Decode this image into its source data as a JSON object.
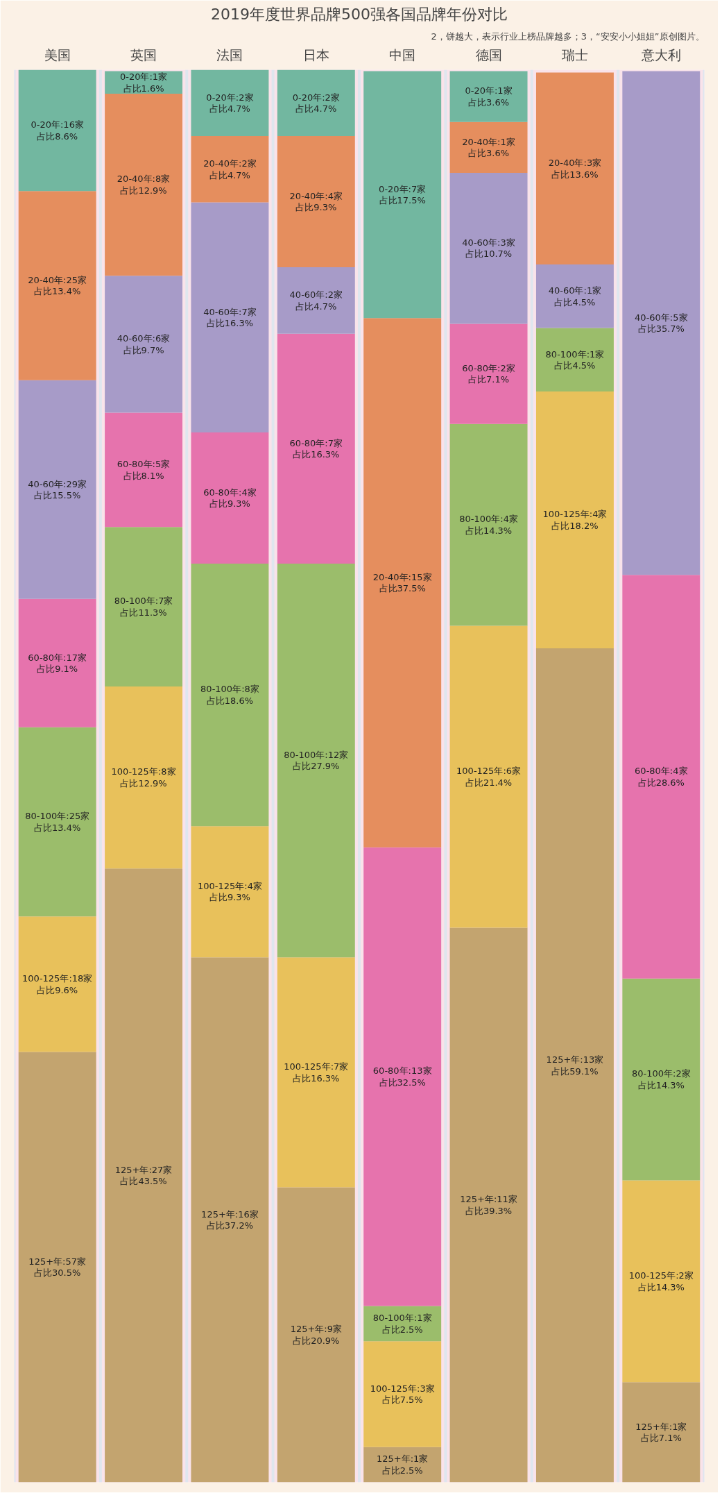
{
  "chart_data": {
    "type": "bar",
    "stacked": true,
    "title": "2019年度世界品牌500强各国品牌年份对比",
    "subtitle": "2，饼越大，表示行业上榜品牌越多；3，“安安小小姐姐”原创图片。",
    "categories": [
      "美国",
      "英国",
      "法国",
      "日本",
      "中国",
      "德国",
      "瑞士",
      "意大利"
    ],
    "ylim": [
      0,
      100.1
    ],
    "series": [
      {
        "color": "#c3a46f",
        "values": [
          30.5,
          43.5,
          37.2,
          20.9,
          2.5,
          39.3,
          59.1,
          7.1
        ],
        "value_labels": [
          "125+年:57家占比30.5%",
          "125+年:27家占比43.5%",
          "125+年:16家占比37.2%",
          "125+年:9家占比20.9%",
          "125+年:1家占比2.5%",
          "125+年:11家占比39.3%",
          "125+年:13家占比59.1%",
          "125+年:1家占比7.1%"
        ]
      },
      {
        "color": "#e8c15b",
        "values": [
          9.6,
          12.9,
          9.3,
          16.3,
          7.5,
          21.4,
          18.2,
          14.3
        ],
        "value_labels": [
          "100-125年:18家占比9.6%",
          "100-125年:8家占比12.9%",
          "100-125年:4家占比9.3%",
          "100-125年:7家占比16.3%",
          "100-125年:3家占比7.5%",
          "100-125年:6家占比21.4%",
          "100-125年:4家占比18.2%",
          "100-125年:2家占比14.3%"
        ]
      },
      {
        "color": "#9bbd6b",
        "values": [
          13.4,
          11.3,
          18.6,
          27.9,
          2.5,
          14.3,
          4.5,
          14.3
        ],
        "value_labels": [
          "80-100年:25家占比13.4%",
          "80-100年:7家占比11.3%",
          "80-100年:8家占比18.6%",
          "80-100年:12家占比27.9%",
          "80-100年:1家占比2.5%",
          "80-100年:4家占比14.3%",
          "80-100年:1家占比4.5%",
          "80-100年:2家占比14.3%"
        ]
      },
      {
        "color": "#e673ad",
        "values": [
          9.1,
          8.1,
          9.3,
          16.3,
          32.5,
          7.1,
          null,
          28.6
        ],
        "value_labels": [
          "60-80年:17家占比9.1%",
          "60-80年:5家占比8.1%",
          "60-80年:4家占比9.3%",
          "60-80年:7家占比16.3%",
          "60-80年:13家占比32.5%",
          "60-80年:2家占比7.1%",
          null,
          "60-80年:4家占比28.6%"
        ]
      },
      {
        "color": "#a79bc8",
        "values": [
          15.5,
          9.7,
          16.3,
          4.7,
          null,
          10.7,
          4.5,
          35.7
        ],
        "value_labels": [
          "40-60年:29家占比15.5%",
          "40-60年:6家占比9.7%",
          "40-60年:7家占比16.3%",
          "40-60年:2家占比4.7%",
          null,
          "40-60年:3家占比10.7%",
          "40-60年:1家占比4.5%",
          "40-60年:5家占比35.7%"
        ]
      },
      {
        "color": "#e58e5e",
        "values": [
          13.4,
          12.9,
          4.7,
          9.3,
          37.5,
          3.6,
          13.6,
          null
        ],
        "value_labels": [
          "20-40年:25家占比13.4%",
          "20-40年:8家占比12.9%",
          "20-40年:2家占比4.7%",
          "20-40年:4家占比9.3%",
          "20-40年:15家占比37.5%",
          "20-40年:1家占比3.6%",
          "20-40年:3家占比13.6%",
          null
        ]
      },
      {
        "color": "#72b7a0",
        "values": [
          8.6,
          1.6,
          4.7,
          4.7,
          17.5,
          3.6,
          null,
          null
        ],
        "value_labels": [
          "0-20年:16家占比8.6%",
          "0-20年:1家占比1.6%",
          "0-20年:2家占比4.7%",
          "0-20年:2家占比4.7%",
          "0-20年:7家占比17.5%",
          "0-20年:1家占比3.6%",
          null,
          null
        ]
      }
    ]
  }
}
